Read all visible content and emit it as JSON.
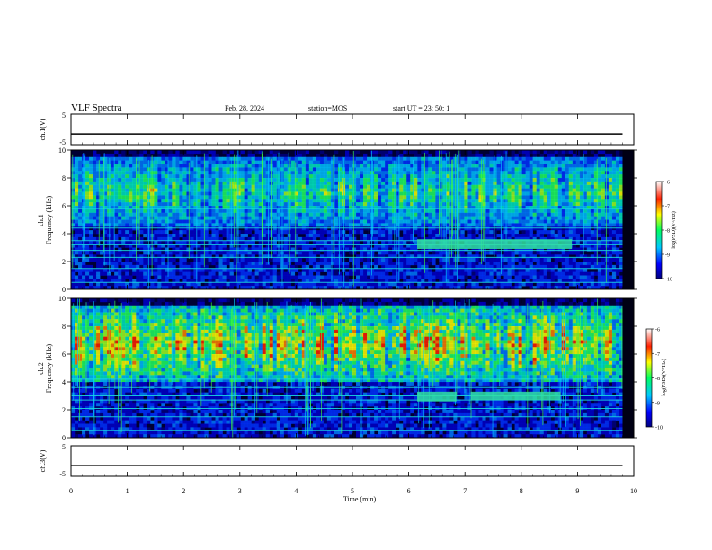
{
  "header": {
    "title": "VLF Spectra",
    "date": "Feb. 28, 2024",
    "station": "station=MOS",
    "start": "start  UT  =   23: 50: 1"
  },
  "panels": {
    "ch1_wave_label": "ch.1(V)",
    "ch1_spec_label": "ch.1",
    "ch2_spec_label": "ch.2",
    "ch3_wave_label": "ch.3(V)",
    "freq_label": "Frequency (kHz)",
    "x_label": "Time (min)",
    "colorbar_label": "log(PSD)(V²/Hz)"
  },
  "colors": {
    "background": "#000033",
    "bands": "#18d8e0",
    "trace": "#000000"
  },
  "chart_data": [
    {
      "type": "line",
      "name": "ch1-waveform",
      "ylabel": "ch.1(V)",
      "ylim": [
        -5,
        5
      ],
      "yticks": [
        "5",
        "-5"
      ],
      "x": [
        0,
        9.8
      ],
      "y": [
        -1.5,
        -1.5
      ]
    },
    {
      "type": "heatmap",
      "name": "ch1-spectrogram",
      "ylabel": "Frequency (kHz)",
      "xlim": [
        0,
        10
      ],
      "ylim": [
        0,
        10
      ],
      "xticks": [
        "0",
        "1",
        "2",
        "3",
        "4",
        "5",
        "6",
        "7",
        "8",
        "9",
        "10"
      ],
      "yticks": [
        "0",
        "2",
        "4",
        "6",
        "8",
        "10"
      ],
      "colorbar": {
        "label": "log(PSD)(V²/Hz)",
        "ticks": [
          "-6",
          "-7",
          "-8",
          "-9",
          "-10"
        ],
        "range": [
          -10,
          -6
        ]
      },
      "emission_band_khz": [
        4.5,
        9.5
      ],
      "lines_khz": [
        0.5,
        1.5,
        2.3,
        2.8,
        3.2,
        3.5,
        4.4,
        5.8
      ],
      "patches": [
        {
          "t": [
            6.15,
            8.9
          ],
          "f": [
            2.9,
            3.6
          ]
        }
      ]
    },
    {
      "type": "heatmap",
      "name": "ch2-spectrogram",
      "ylabel": "Frequency (kHz)",
      "xlim": [
        0,
        10
      ],
      "ylim": [
        0,
        10
      ],
      "xticks": [
        "0",
        "1",
        "2",
        "3",
        "4",
        "5",
        "6",
        "7",
        "8",
        "9",
        "10"
      ],
      "yticks": [
        "0",
        "2",
        "4",
        "6",
        "8",
        "10"
      ],
      "colorbar": {
        "label": "log(PSD)(V²/Hz)",
        "ticks": [
          "-6",
          "-7",
          "-8",
          "-9",
          "-10"
        ],
        "range": [
          -10,
          -6
        ]
      },
      "emission_band_khz": [
        4.0,
        9.5
      ],
      "lines_khz": [
        0.5,
        1.5,
        2.1,
        2.7,
        3.0,
        3.6,
        4.2
      ],
      "patches": [
        {
          "t": [
            6.15,
            6.85
          ],
          "f": [
            2.6,
            3.3
          ]
        },
        {
          "t": [
            7.1,
            8.7
          ],
          "f": [
            2.7,
            3.3
          ]
        }
      ]
    },
    {
      "type": "line",
      "name": "ch3-waveform",
      "ylabel": "ch.3(V)",
      "ylim": [
        -5,
        5
      ],
      "yticks": [
        "5",
        "-5"
      ],
      "xlabel": "Time (min)",
      "xlim": [
        0,
        10
      ],
      "x": [
        0,
        9.8
      ],
      "y": [
        -1.5,
        -1.5
      ]
    }
  ]
}
